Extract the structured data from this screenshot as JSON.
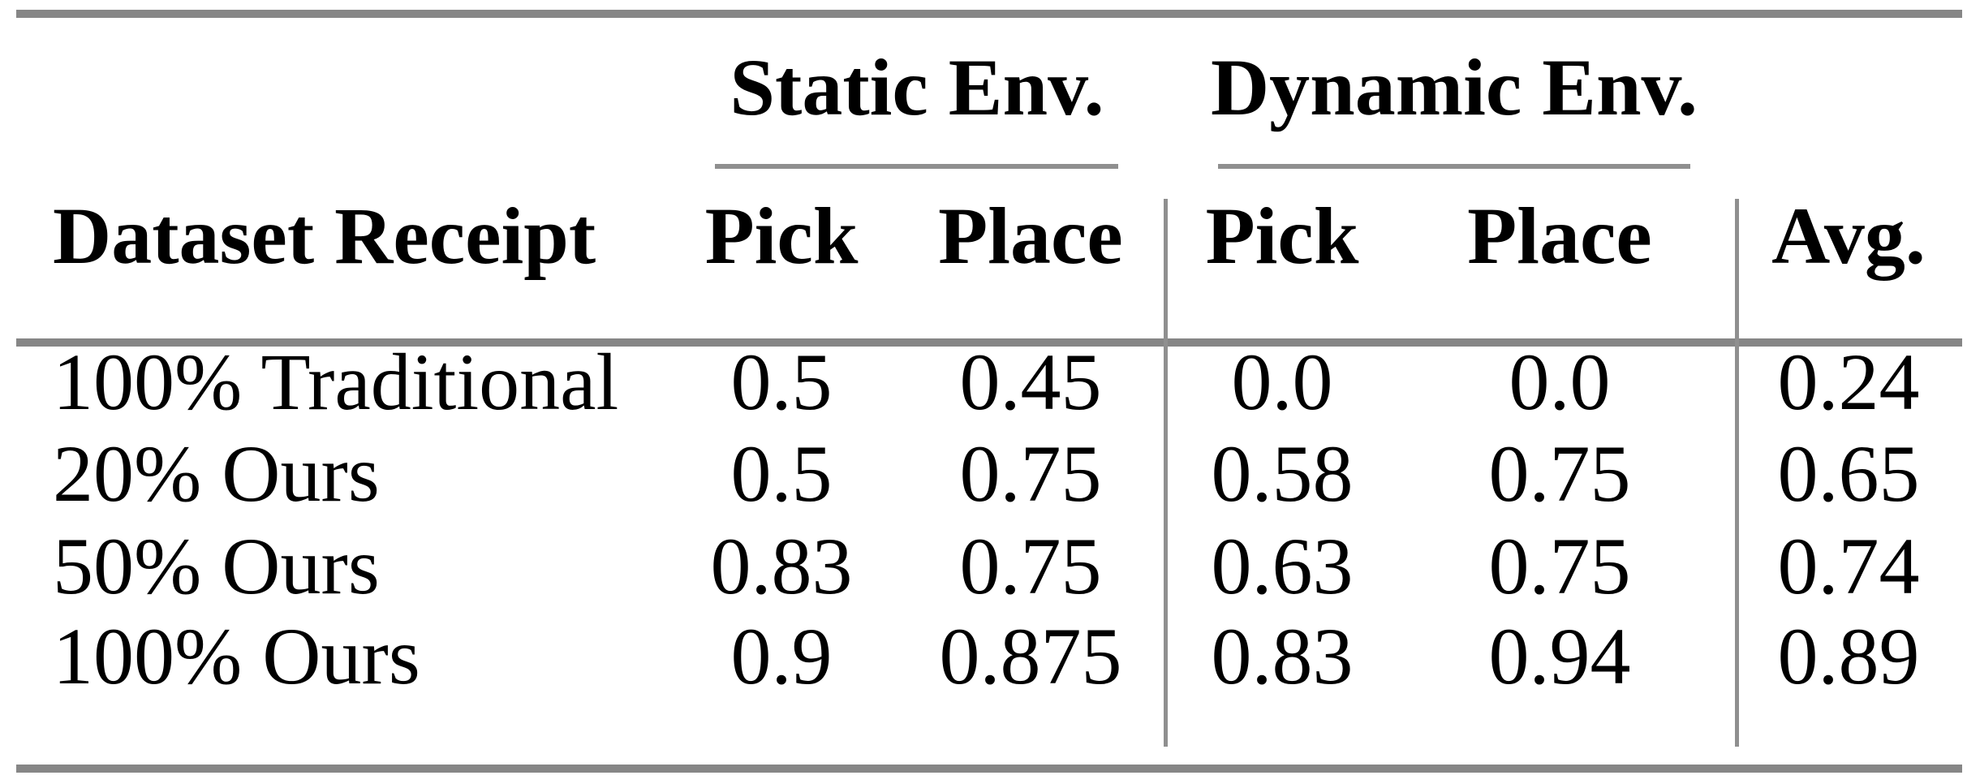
{
  "table": {
    "groups": [
      {
        "label": "Static Env."
      },
      {
        "label": "Dynamic Env."
      }
    ],
    "header": {
      "row_label": "Dataset Receipt",
      "cells": [
        "Pick",
        "Place",
        "Pick",
        "Place",
        "Avg."
      ]
    },
    "rows": [
      {
        "label": "100% Traditional",
        "cells": [
          "0.5",
          "0.45",
          "0.0",
          "0.0",
          "0.24"
        ]
      },
      {
        "label": "20% Ours",
        "cells": [
          "0.5",
          "0.75",
          "0.58",
          "0.75",
          "0.65"
        ]
      },
      {
        "label": "50% Ours",
        "cells": [
          "0.83",
          "0.75",
          "0.63",
          "0.75",
          "0.74"
        ]
      },
      {
        "label": "100% Ours",
        "cells": [
          "0.9",
          "0.875",
          "0.83",
          "0.94",
          "0.89"
        ]
      }
    ]
  },
  "chart_data": {
    "type": "table",
    "title": "",
    "column_groups": [
      "",
      "Static Env.",
      "Static Env.",
      "Dynamic Env.",
      "Dynamic Env.",
      ""
    ],
    "columns": [
      "Dataset Receipt",
      "Pick",
      "Place",
      "Pick",
      "Place",
      "Avg."
    ],
    "rows": [
      [
        "100% Traditional",
        0.5,
        0.45,
        0.0,
        0.0,
        0.24
      ],
      [
        "20% Ours",
        0.5,
        0.75,
        0.58,
        0.75,
        0.65
      ],
      [
        "50% Ours",
        0.83,
        0.75,
        0.63,
        0.75,
        0.74
      ],
      [
        "100% Ours",
        0.9,
        0.875,
        0.83,
        0.94,
        0.89
      ]
    ]
  },
  "colors": {
    "background": "#ffffff",
    "text": "#000000",
    "thick_rule": "#868686",
    "thin_rule": "#8f8f8f"
  }
}
